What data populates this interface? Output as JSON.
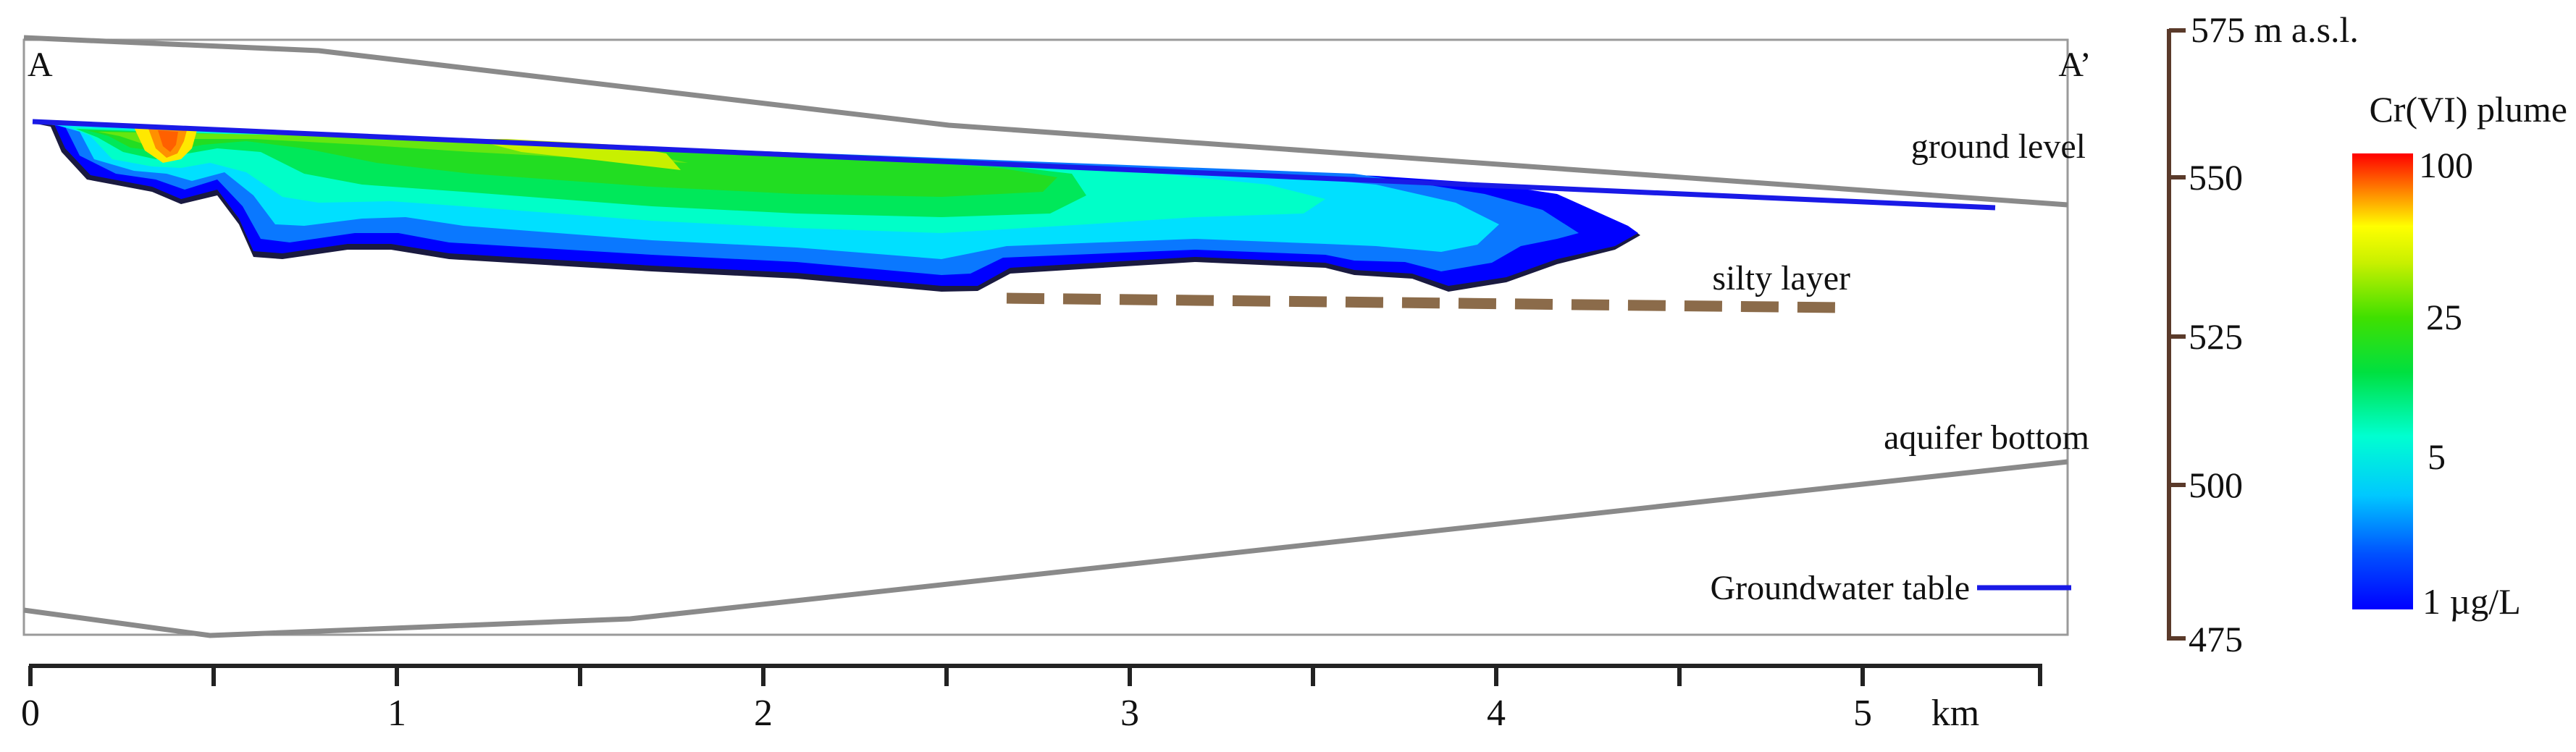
{
  "section": {
    "start_label": "A",
    "end_label": "A’",
    "ground_level_label": "ground level",
    "silty_layer_label": "silty layer",
    "aquifer_bottom_label": "aquifer bottom",
    "groundwater_table_label": "Groundwater table"
  },
  "elevation_axis": {
    "top_label": "575 m a.s.l.",
    "ticks": [
      "550",
      "525",
      "500",
      "475"
    ]
  },
  "distance_axis": {
    "ticks": [
      "0",
      "1",
      "2",
      "3",
      "4",
      "5"
    ],
    "unit": "km"
  },
  "legend": {
    "title": "Cr(VI) plume",
    "labels": [
      "100",
      "25",
      "5",
      "1 µg/L"
    ]
  },
  "colors": {
    "profile_lines": "#8a8a8a",
    "groundwater_table": "#1a1ae6",
    "silty_layer": "#8b6b4a",
    "elevation_axis": "#5a3a2a",
    "distance_axis": "#222222"
  }
}
